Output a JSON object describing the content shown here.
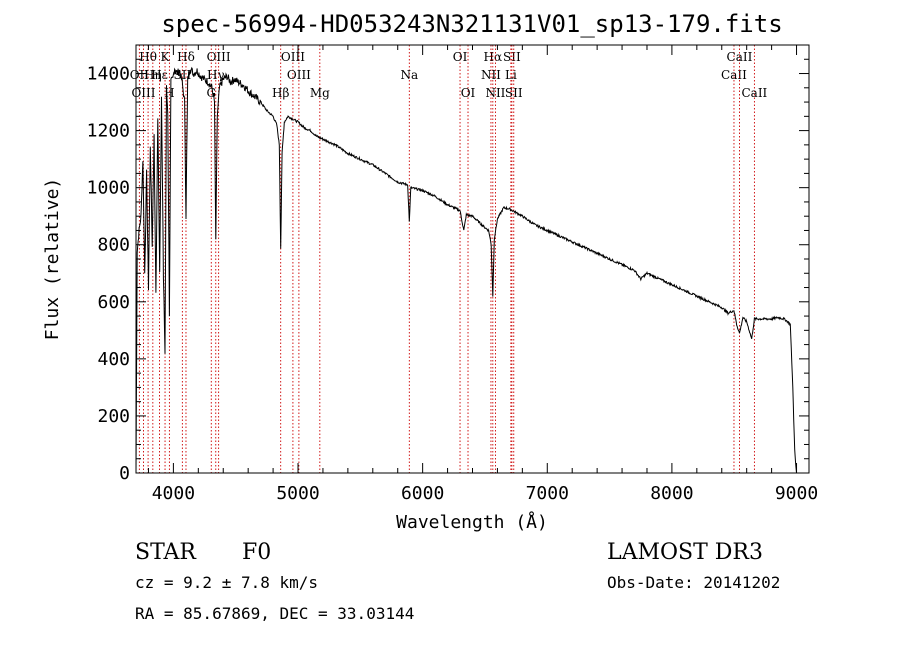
{
  "chart_data": {
    "type": "line",
    "title": "spec-56994-HD053243N321131V01_sp13-179.fits",
    "xlabel": "Wavelength (Å)",
    "ylabel": "Flux (relative)",
    "xlim": [
      3700,
      9100
    ],
    "ylim": [
      0,
      1500
    ],
    "x_ticks": [
      4000,
      5000,
      6000,
      7000,
      8000,
      9000
    ],
    "x_tick_labels": [
      "4000",
      "5000",
      "6000",
      "7000",
      "8000",
      "9000"
    ],
    "y_ticks": [
      0,
      200,
      400,
      600,
      800,
      1000,
      1200,
      1400
    ],
    "y_tick_labels": [
      "0",
      "200",
      "400",
      "600",
      "800",
      "1000",
      "1200",
      "1400"
    ],
    "grid": false,
    "series": [
      {
        "name": "flux",
        "x": [
          3700,
          3710,
          3725,
          3740,
          3755,
          3770,
          3785,
          3800,
          3815,
          3830,
          3845,
          3860,
          3875,
          3890,
          3905,
          3920,
          3933,
          3945,
          3955,
          3968,
          3980,
          3995,
          4010,
          4030,
          4050,
          4070,
          4090,
          4101,
          4115,
          4135,
          4160,
          4190,
          4220,
          4250,
          4280,
          4310,
          4330,
          4340,
          4352,
          4370,
          4400,
          4430,
          4460,
          4490,
          4520,
          4560,
          4600,
          4650,
          4700,
          4750,
          4800,
          4830,
          4850,
          4861,
          4872,
          4890,
          4920,
          4960,
          5000,
          5050,
          5100,
          5150,
          5200,
          5300,
          5400,
          5500,
          5600,
          5700,
          5800,
          5880,
          5893,
          5905,
          6000,
          6100,
          6200,
          6300,
          6330,
          6350,
          6400,
          6450,
          6500,
          6530,
          6550,
          6563,
          6575,
          6600,
          6650,
          6700,
          6800,
          6900,
          7000,
          7100,
          7200,
          7300,
          7400,
          7500,
          7600,
          7700,
          7750,
          7800,
          7900,
          8000,
          8100,
          8200,
          8300,
          8400,
          8450,
          8498,
          8520,
          8542,
          8570,
          8600,
          8640,
          8662,
          8700,
          8750,
          8800,
          8850,
          8900,
          8930,
          8950,
          8970,
          8985,
          8995,
          9000
        ],
        "values": [
          0,
          780,
          850,
          900,
          1100,
          700,
          1050,
          650,
          1150,
          800,
          1180,
          620,
          1250,
          700,
          1330,
          680,
          420,
          1350,
          1260,
          560,
          1370,
          1380,
          1420,
          1400,
          1410,
          1370,
          1300,
          900,
          1380,
          1420,
          1400,
          1410,
          1390,
          1380,
          1370,
          1350,
          1300,
          820,
          1250,
          1350,
          1380,
          1390,
          1370,
          1380,
          1370,
          1360,
          1340,
          1320,
          1300,
          1270,
          1250,
          1220,
          1150,
          790,
          1120,
          1230,
          1250,
          1240,
          1230,
          1210,
          1200,
          1180,
          1170,
          1150,
          1120,
          1100,
          1080,
          1050,
          1020,
          1010,
          880,
          1000,
          990,
          970,
          940,
          920,
          850,
          905,
          900,
          880,
          860,
          850,
          800,
          620,
          820,
          890,
          930,
          925,
          900,
          870,
          850,
          830,
          810,
          790,
          770,
          750,
          730,
          710,
          680,
          700,
          680,
          660,
          640,
          620,
          600,
          580,
          560,
          570,
          520,
          490,
          545,
          530,
          470,
          540,
          540,
          540,
          540,
          545,
          540,
          530,
          520,
          300,
          80,
          20,
          0
        ]
      }
    ],
    "line_markers": [
      {
        "label": "Hθ",
        "wavelength": 3797,
        "row": 0
      },
      {
        "label": "OII",
        "wavelength": 3727,
        "row": 1
      },
      {
        "label": "Hη",
        "wavelength": 3835,
        "row": 1
      },
      {
        "label": "OIII",
        "wavelength": 3760,
        "row": 2
      },
      {
        "label": "Hε",
        "wavelength": 3889,
        "row": 1
      },
      {
        "label": "K",
        "wavelength": 3933,
        "row": 0
      },
      {
        "label": "H",
        "wavelength": 3968,
        "row": 2
      },
      {
        "label": "Hδ",
        "wavelength": 4101,
        "row": 0
      },
      {
        "label": "SII",
        "wavelength": 4072,
        "row": 1
      },
      {
        "label": "OIII",
        "wavelength": 4363,
        "row": 0
      },
      {
        "label": "Hγ",
        "wavelength": 4340,
        "row": 1
      },
      {
        "label": "G",
        "wavelength": 4304,
        "row": 2
      },
      {
        "label": "OIII",
        "wavelength": 4959,
        "row": 0
      },
      {
        "label": "OIII",
        "wavelength": 5007,
        "row": 1
      },
      {
        "label": "Hβ",
        "wavelength": 4861,
        "row": 2
      },
      {
        "label": "Mg",
        "wavelength": 5175,
        "row": 2
      },
      {
        "label": "Na",
        "wavelength": 5893,
        "row": 1
      },
      {
        "label": "OI",
        "wavelength": 6300,
        "row": 0
      },
      {
        "label": "OI",
        "wavelength": 6364,
        "row": 2
      },
      {
        "label": "Hα",
        "wavelength": 6563,
        "row": 0
      },
      {
        "label": "NII",
        "wavelength": 6548,
        "row": 1
      },
      {
        "label": "NII",
        "wavelength": 6584,
        "row": 2
      },
      {
        "label": "SII",
        "wavelength": 6716,
        "row": 0
      },
      {
        "label": "Li",
        "wavelength": 6708,
        "row": 1
      },
      {
        "label": "SII",
        "wavelength": 6731,
        "row": 2
      },
      {
        "label": "CaII",
        "wavelength": 8498,
        "row": 1
      },
      {
        "label": "CaII",
        "wavelength": 8542,
        "row": 0
      },
      {
        "label": "CaII",
        "wavelength": 8662,
        "row": 2
      }
    ],
    "marker_color": "#cc0000"
  },
  "info": {
    "object_class": "STAR",
    "subclass": "F0",
    "cz": "cz = 9.2 ± 7.8 km/s",
    "coords": "RA =  85.67869, DEC =  33.03144",
    "survey": "LAMOST DR3",
    "obs_date": "Obs-Date: 20141202"
  }
}
